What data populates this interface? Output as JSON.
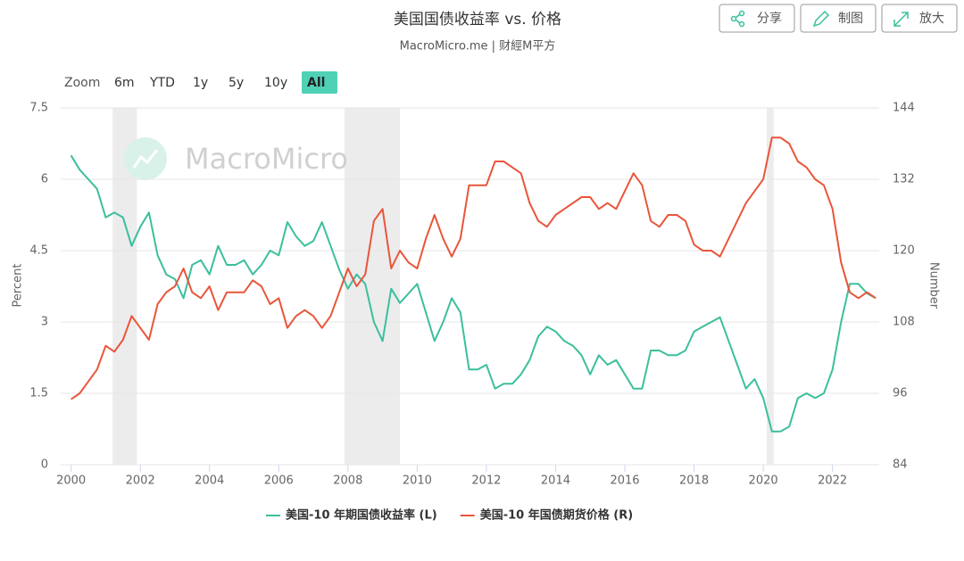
{
  "chart_data": {
    "type": "line",
    "title": "美国国债收益率 vs. 价格",
    "subtitle": "MacroMicro.me | 财經M平方",
    "watermark": "MacroMicro",
    "y_label": "Percent",
    "y2_label": "Number",
    "x": [
      2000,
      2000.25,
      2000.5,
      2000.75,
      2001,
      2001.25,
      2001.5,
      2001.75,
      2002,
      2002.25,
      2002.5,
      2002.75,
      2003,
      2003.25,
      2003.5,
      2003.75,
      2004,
      2004.25,
      2004.5,
      2004.75,
      2005,
      2005.25,
      2005.5,
      2005.75,
      2006,
      2006.25,
      2006.5,
      2006.75,
      2007,
      2007.25,
      2007.5,
      2007.75,
      2008,
      2008.25,
      2008.5,
      2008.75,
      2009,
      2009.25,
      2009.5,
      2009.75,
      2010,
      2010.25,
      2010.5,
      2010.75,
      2011,
      2011.25,
      2011.5,
      2011.75,
      2012,
      2012.25,
      2012.5,
      2012.75,
      2013,
      2013.25,
      2013.5,
      2013.75,
      2014,
      2014.25,
      2014.5,
      2014.75,
      2015,
      2015.25,
      2015.5,
      2015.75,
      2016,
      2016.25,
      2016.5,
      2016.75,
      2017,
      2017.25,
      2017.5,
      2017.75,
      2018,
      2018.25,
      2018.5,
      2018.75,
      2019,
      2019.25,
      2019.5,
      2019.75,
      2020,
      2020.25,
      2020.5,
      2020.75,
      2021,
      2021.25,
      2021.5,
      2021.75,
      2022,
      2022.25,
      2022.5,
      2022.75,
      2023,
      2023.25
    ],
    "series": [
      {
        "name": "美国-10 年期国债收益率 (L)",
        "color": "#3bbf9d",
        "values": [
          6.5,
          6.2,
          6.0,
          5.8,
          5.2,
          5.3,
          5.2,
          4.6,
          5.0,
          5.3,
          4.4,
          4.0,
          3.9,
          3.5,
          4.2,
          4.3,
          4.0,
          4.6,
          4.2,
          4.2,
          4.3,
          4.0,
          4.2,
          4.5,
          4.4,
          5.1,
          4.8,
          4.6,
          4.7,
          5.1,
          4.6,
          4.1,
          3.7,
          4.0,
          3.8,
          3.0,
          2.6,
          3.7,
          3.4,
          3.6,
          3.8,
          3.2,
          2.6,
          3.0,
          3.5,
          3.2,
          2.0,
          2.0,
          2.1,
          1.6,
          1.7,
          1.7,
          1.9,
          2.2,
          2.7,
          2.9,
          2.8,
          2.6,
          2.5,
          2.3,
          1.9,
          2.3,
          2.1,
          2.2,
          1.9,
          1.6,
          1.6,
          2.4,
          2.4,
          2.3,
          2.3,
          2.4,
          2.8,
          2.9,
          3.0,
          3.1,
          2.6,
          2.1,
          1.6,
          1.8,
          1.4,
          0.7,
          0.7,
          0.8,
          1.4,
          1.5,
          1.4,
          1.5,
          2.0,
          3.0,
          3.8,
          3.8,
          3.6,
          3.5
        ]
      },
      {
        "name": "美国-10 年国债期货价格 (R)",
        "color": "#e9553a",
        "axis": "y2",
        "values": [
          95,
          96,
          98,
          100,
          104,
          103,
          105,
          109,
          107,
          105,
          111,
          113,
          114,
          117,
          113,
          112,
          114,
          110,
          113,
          113,
          113,
          115,
          114,
          111,
          112,
          107,
          109,
          110,
          109,
          107,
          109,
          113,
          117,
          114,
          116,
          125,
          127,
          117,
          120,
          118,
          117,
          122,
          126,
          122,
          119,
          122,
          131,
          131,
          131,
          135,
          135,
          134,
          133,
          128,
          125,
          124,
          126,
          127,
          128,
          129,
          129,
          127,
          128,
          127,
          130,
          133,
          131,
          125,
          124,
          126,
          126,
          125,
          121,
          120,
          120,
          119,
          122,
          125,
          128,
          130,
          132,
          139,
          139,
          138,
          135,
          134,
          132,
          131,
          127,
          118,
          113,
          112,
          113,
          112
        ]
      }
    ],
    "shaded": [
      [
        2001.2,
        2001.9
      ],
      [
        2007.9,
        2009.5
      ],
      [
        2020.1,
        2020.3
      ]
    ],
    "xlim": [
      1999.7,
      2023.35
    ],
    "xticks": [
      2000,
      2002,
      2004,
      2006,
      2008,
      2010,
      2012,
      2014,
      2016,
      2018,
      2020,
      2022
    ],
    "ylim": [
      0,
      7.5
    ],
    "yticks": [
      0,
      1.5,
      3,
      4.5,
      6,
      7.5
    ],
    "y2lim": [
      84,
      144
    ],
    "y2ticks": [
      84,
      96,
      108,
      120,
      132,
      144
    ],
    "grid": true,
    "shade_color": "#ececec"
  },
  "toolbar": {
    "zoom_label": "Zoom",
    "zoom": [
      "6m",
      "YTD",
      "1y",
      "5y",
      "10y",
      "All"
    ],
    "active_zoom": 5,
    "buttons": [
      "分享",
      "制图",
      "放大"
    ]
  }
}
